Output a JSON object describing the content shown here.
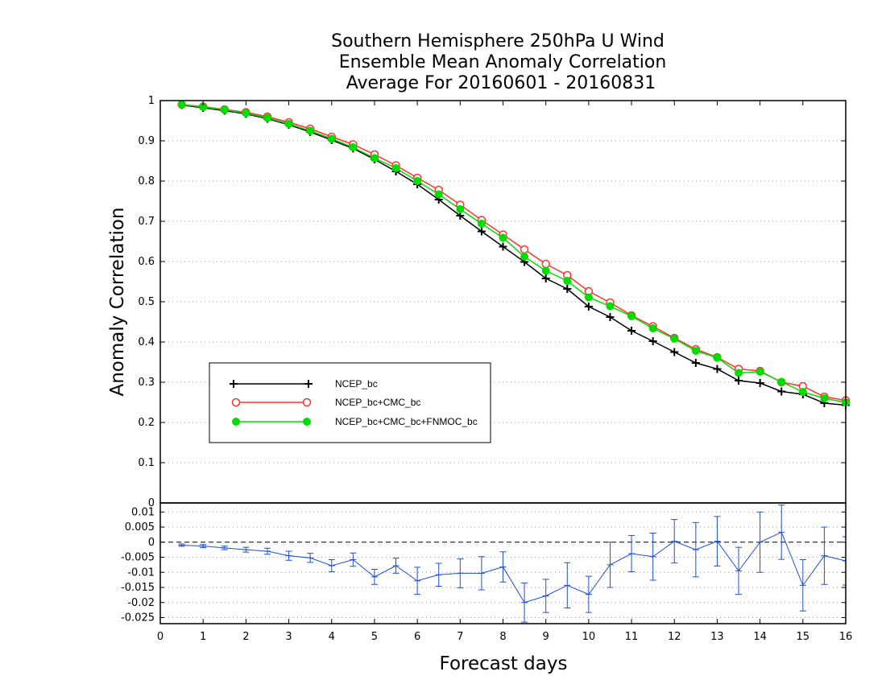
{
  "chart_data": [
    {
      "type": "line",
      "title_lines": [
        "Southern Hemisphere 250hPa U Wind",
        "Ensemble Mean Anomaly Correlation",
        "Average For 20160601 - 20160831"
      ],
      "xlabel": "Forecast days",
      "ylabel": "Anomaly Correlation",
      "xlim": [
        0,
        16
      ],
      "ylim": [
        0,
        1
      ],
      "grid": "horizontal dotted",
      "legend_position": "center-left",
      "x": [
        0.5,
        1,
        1.5,
        2,
        2.5,
        3,
        3.5,
        4,
        4.5,
        5,
        5.5,
        6,
        6.5,
        7,
        7.5,
        8,
        8.5,
        9,
        9.5,
        10,
        10.5,
        11,
        11.5,
        12,
        12.5,
        13,
        13.5,
        14,
        14.5,
        15,
        15.5,
        16
      ],
      "series": [
        {
          "name": "NCEP_bc",
          "color": "#000000",
          "marker": "plus",
          "values": [
            0.989,
            0.982,
            0.975,
            0.967,
            0.955,
            0.94,
            0.922,
            0.902,
            0.881,
            0.854,
            0.824,
            0.792,
            0.754,
            0.714,
            0.675,
            0.637,
            0.599,
            0.558,
            0.532,
            0.488,
            0.462,
            0.428,
            0.402,
            0.375,
            0.348,
            0.333,
            0.304,
            0.298,
            0.277,
            0.27,
            0.248,
            0.243
          ]
        },
        {
          "name": "NCEP_bc+CMC_bc",
          "color": "#ff3030",
          "marker": "open-circle",
          "values": [
            0.99,
            0.985,
            0.978,
            0.971,
            0.96,
            0.946,
            0.93,
            0.91,
            0.891,
            0.866,
            0.839,
            0.808,
            0.778,
            0.741,
            0.703,
            0.667,
            0.63,
            0.594,
            0.566,
            0.526,
            0.498,
            0.466,
            0.439,
            0.41,
            0.382,
            0.362,
            0.333,
            0.328,
            0.3,
            0.29,
            0.264,
            0.255
          ]
        },
        {
          "name": "NCEP_bc+CMC_bc+FNMOC_bc",
          "color": "#00dd00",
          "marker": "filled-circle",
          "values": [
            0.99,
            0.984,
            0.977,
            0.969,
            0.957,
            0.942,
            0.925,
            0.905,
            0.884,
            0.857,
            0.832,
            0.8,
            0.767,
            0.73,
            0.694,
            0.659,
            0.612,
            0.577,
            0.552,
            0.511,
            0.489,
            0.464,
            0.434,
            0.408,
            0.378,
            0.361,
            0.323,
            0.326,
            0.301,
            0.276,
            0.26,
            0.25
          ]
        }
      ],
      "x_ticks": [
        "0",
        "1",
        "2",
        "3",
        "4",
        "5",
        "6",
        "7",
        "8",
        "9",
        "10",
        "11",
        "12",
        "13",
        "14",
        "15",
        "16"
      ],
      "y_ticks": [
        "0",
        "0.1",
        "0.2",
        "0.3",
        "0.4",
        "0.5",
        "0.6",
        "0.7",
        "0.8",
        "0.9",
        "1"
      ]
    },
    {
      "type": "line",
      "description": "difference panel with error bars",
      "xlim": [
        0,
        16
      ],
      "ylim": [
        -0.027,
        0.013
      ],
      "reference_line": 0,
      "x": [
        0.5,
        1,
        1.5,
        2,
        2.5,
        3,
        3.5,
        4,
        4.5,
        5,
        5.5,
        6,
        6.5,
        7,
        7.5,
        8,
        8.5,
        9,
        9.5,
        10,
        10.5,
        11,
        11.5,
        12,
        12.5,
        13,
        13.5,
        14,
        14.5,
        15,
        15.5,
        16
      ],
      "series": [
        {
          "color": "#1f4fd8",
          "values": [
            -0.001,
            -0.0013,
            -0.0019,
            -0.0025,
            -0.003,
            -0.0045,
            -0.0052,
            -0.0078,
            -0.0058,
            -0.0115,
            -0.0078,
            -0.0128,
            -0.0108,
            -0.0103,
            -0.0103,
            -0.0082,
            -0.02,
            -0.0178,
            -0.0143,
            -0.0173,
            -0.0075,
            -0.0038,
            -0.0048,
            0.0003,
            -0.0025,
            0.0003,
            -0.0095,
            0.0,
            0.0033,
            -0.0143,
            -0.0045,
            -0.0062
          ],
          "errors": [
            0.0004,
            0.0005,
            0.0006,
            0.0008,
            0.001,
            0.0015,
            0.0015,
            0.002,
            0.0022,
            0.0025,
            0.0025,
            0.0045,
            0.0038,
            0.0048,
            0.0055,
            0.005,
            0.0065,
            0.0055,
            0.0075,
            0.006,
            0.0075,
            0.006,
            0.0078,
            0.0072,
            0.009,
            0.0082,
            0.0078,
            0.01,
            0.009,
            0.0085,
            0.0095,
            0.008
          ]
        }
      ],
      "y_ticks": [
        "0.01",
        "0.005",
        "0",
        "-0.005",
        "-0.01",
        "-0.015",
        "-0.02",
        "-0.025"
      ]
    }
  ]
}
